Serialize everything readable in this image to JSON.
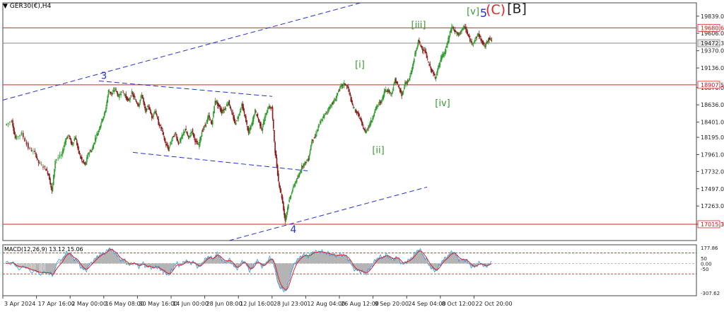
{
  "chart_data": {
    "type": "candlestick",
    "symbol_label": "GER30(€),H4",
    "price_axis": {
      "min": 16794,
      "max": 20020,
      "ticks": [
        "19839.0",
        "19606.0",
        "19370.0",
        "19136.0",
        "18870.0",
        "18636.0",
        "18401.0",
        "18195.0",
        "17961.0",
        "17732.0",
        "17497.0",
        "17263.0",
        "17015.3",
        "16794.0"
      ],
      "tick_values": [
        19839,
        19606,
        19370,
        19136,
        18870,
        18636,
        18401,
        18195,
        17961,
        17732,
        17497,
        17263,
        17015.3,
        16794
      ]
    },
    "horizontal_levels": [
      {
        "value": 19680.6,
        "label": "19680.6",
        "color": "#dd2222"
      },
      {
        "value": 18907.5,
        "label": "18907.5",
        "color": "#dd2222"
      },
      {
        "value": 17015.3,
        "label": "17015.3",
        "color": "#dd2222"
      },
      {
        "value": 19472.3,
        "label": "19472.3",
        "color": "#888888"
      }
    ],
    "time_axis": {
      "labels": [
        "3 Apr 2024",
        "17 Apr 16:00",
        "2 May 00:00",
        "16 May 08:00",
        "30 May 16:00",
        "14 Jun 00:00",
        "28 Jun 08:00",
        "12 Jul 16:00",
        "28 Jul 23:00",
        "12 Aug 04:00",
        "26 Aug 12:00",
        "9 Sep 20:00",
        "24 Sep 04:00",
        "8 Oct 12:00",
        "22 Oct 20:00"
      ]
    },
    "wave_labels": [
      {
        "text": "3",
        "color": "#2233cc"
      },
      {
        "text": "4",
        "color": "#2233cc"
      },
      {
        "text": "[i]",
        "color": "#339933"
      },
      {
        "text": "[ii]",
        "color": "#339933"
      },
      {
        "text": "[iii]",
        "color": "#339933"
      },
      {
        "text": "[iv]",
        "color": "#339933"
      },
      {
        "text": "[v]",
        "color": "#339933"
      },
      {
        "text": "5",
        "color": "#2233cc"
      },
      {
        "text": "(C)",
        "color": "#ee2222"
      },
      {
        "text": "[B]",
        "color": "#222222"
      }
    ],
    "price_path": [
      [
        0,
        18360
      ],
      [
        2,
        18420
      ],
      [
        3,
        18180
      ],
      [
        5,
        18250
      ],
      [
        7,
        18050
      ],
      [
        9,
        17980
      ],
      [
        10,
        17850
      ],
      [
        12,
        17780
      ],
      [
        13,
        17690
      ],
      [
        14,
        17460
      ],
      [
        15,
        17880
      ],
      [
        17,
        17960
      ],
      [
        18,
        18150
      ],
      [
        19,
        18230
      ],
      [
        20,
        18090
      ],
      [
        21,
        18200
      ],
      [
        22,
        18000
      ],
      [
        23,
        17880
      ],
      [
        24,
        17820
      ],
      [
        25,
        17990
      ],
      [
        26,
        18020
      ],
      [
        27,
        18180
      ],
      [
        28,
        18290
      ],
      [
        29,
        18430
      ],
      [
        30,
        18540
      ],
      [
        31,
        18830
      ],
      [
        32,
        18780
      ],
      [
        33,
        18860
      ],
      [
        34,
        18740
      ],
      [
        35,
        18830
      ],
      [
        36,
        18760
      ],
      [
        37,
        18680
      ],
      [
        38,
        18800
      ],
      [
        39,
        18700
      ],
      [
        40,
        18630
      ],
      [
        41,
        18780
      ],
      [
        42,
        18550
      ],
      [
        43,
        18620
      ],
      [
        44,
        18470
      ],
      [
        45,
        18560
      ],
      [
        46,
        18380
      ],
      [
        47,
        18300
      ],
      [
        48,
        18120
      ],
      [
        49,
        18030
      ],
      [
        50,
        18170
      ],
      [
        51,
        18250
      ],
      [
        52,
        18110
      ],
      [
        53,
        18200
      ],
      [
        54,
        18310
      ],
      [
        55,
        18180
      ],
      [
        56,
        18290
      ],
      [
        57,
        18150
      ],
      [
        58,
        18080
      ],
      [
        59,
        18270
      ],
      [
        60,
        18360
      ],
      [
        61,
        18480
      ],
      [
        62,
        18370
      ],
      [
        63,
        18700
      ],
      [
        64,
        18620
      ],
      [
        65,
        18540
      ],
      [
        66,
        18590
      ],
      [
        67,
        18680
      ],
      [
        68,
        18520
      ],
      [
        69,
        18380
      ],
      [
        70,
        18490
      ],
      [
        71,
        18640
      ],
      [
        72,
        18470
      ],
      [
        73,
        18250
      ],
      [
        74,
        18380
      ],
      [
        75,
        18560
      ],
      [
        76,
        18430
      ],
      [
        77,
        18300
      ],
      [
        78,
        18480
      ],
      [
        79,
        18610
      ],
      [
        80,
        18590
      ],
      [
        81,
        18000
      ],
      [
        82,
        17600
      ],
      [
        83,
        17380
      ],
      [
        84,
        17070
      ],
      [
        85,
        17300
      ],
      [
        86,
        17460
      ],
      [
        87,
        17580
      ],
      [
        88,
        17660
      ],
      [
        89,
        17800
      ],
      [
        90,
        17850
      ],
      [
        91,
        17900
      ],
      [
        92,
        18150
      ],
      [
        93,
        18200
      ],
      [
        94,
        18350
      ],
      [
        95,
        18430
      ],
      [
        96,
        18510
      ],
      [
        97,
        18580
      ],
      [
        98,
        18650
      ],
      [
        99,
        18700
      ],
      [
        100,
        18830
      ],
      [
        101,
        18900
      ],
      [
        102,
        18920
      ],
      [
        103,
        18850
      ],
      [
        104,
        18650
      ],
      [
        105,
        18560
      ],
      [
        106,
        18500
      ],
      [
        107,
        18380
      ],
      [
        108,
        18260
      ],
      [
        109,
        18340
      ],
      [
        110,
        18430
      ],
      [
        111,
        18570
      ],
      [
        112,
        18650
      ],
      [
        113,
        18690
      ],
      [
        114,
        18850
      ],
      [
        115,
        18820
      ],
      [
        116,
        18790
      ],
      [
        117,
        18980
      ],
      [
        118,
        18880
      ],
      [
        119,
        18760
      ],
      [
        120,
        18930
      ],
      [
        121,
        18960
      ],
      [
        122,
        19100
      ],
      [
        123,
        19330
      ],
      [
        124,
        19500
      ],
      [
        125,
        19410
      ],
      [
        126,
        19360
      ],
      [
        127,
        19200
      ],
      [
        128,
        19100
      ],
      [
        129,
        19000
      ],
      [
        130,
        19150
      ],
      [
        131,
        19290
      ],
      [
        132,
        19350
      ],
      [
        133,
        19530
      ],
      [
        134,
        19700
      ],
      [
        135,
        19630
      ],
      [
        136,
        19580
      ],
      [
        137,
        19660
      ],
      [
        138,
        19690
      ],
      [
        139,
        19560
      ],
      [
        140,
        19470
      ],
      [
        141,
        19520
      ],
      [
        142,
        19600
      ],
      [
        143,
        19490
      ],
      [
        144,
        19430
      ],
      [
        145,
        19540
      ],
      [
        146,
        19510
      ]
    ],
    "macd": {
      "label": "MACD(12,26,9) 13.12 15.06",
      "min": -307.62,
      "max": 177.86,
      "ticks": [
        "177.86",
        "50",
        "0.00",
        "-50",
        "-307.62"
      ],
      "tick_values": [
        177.86,
        50,
        0,
        -50,
        -307.62
      ],
      "levels": [
        100,
        -100
      ]
    }
  }
}
